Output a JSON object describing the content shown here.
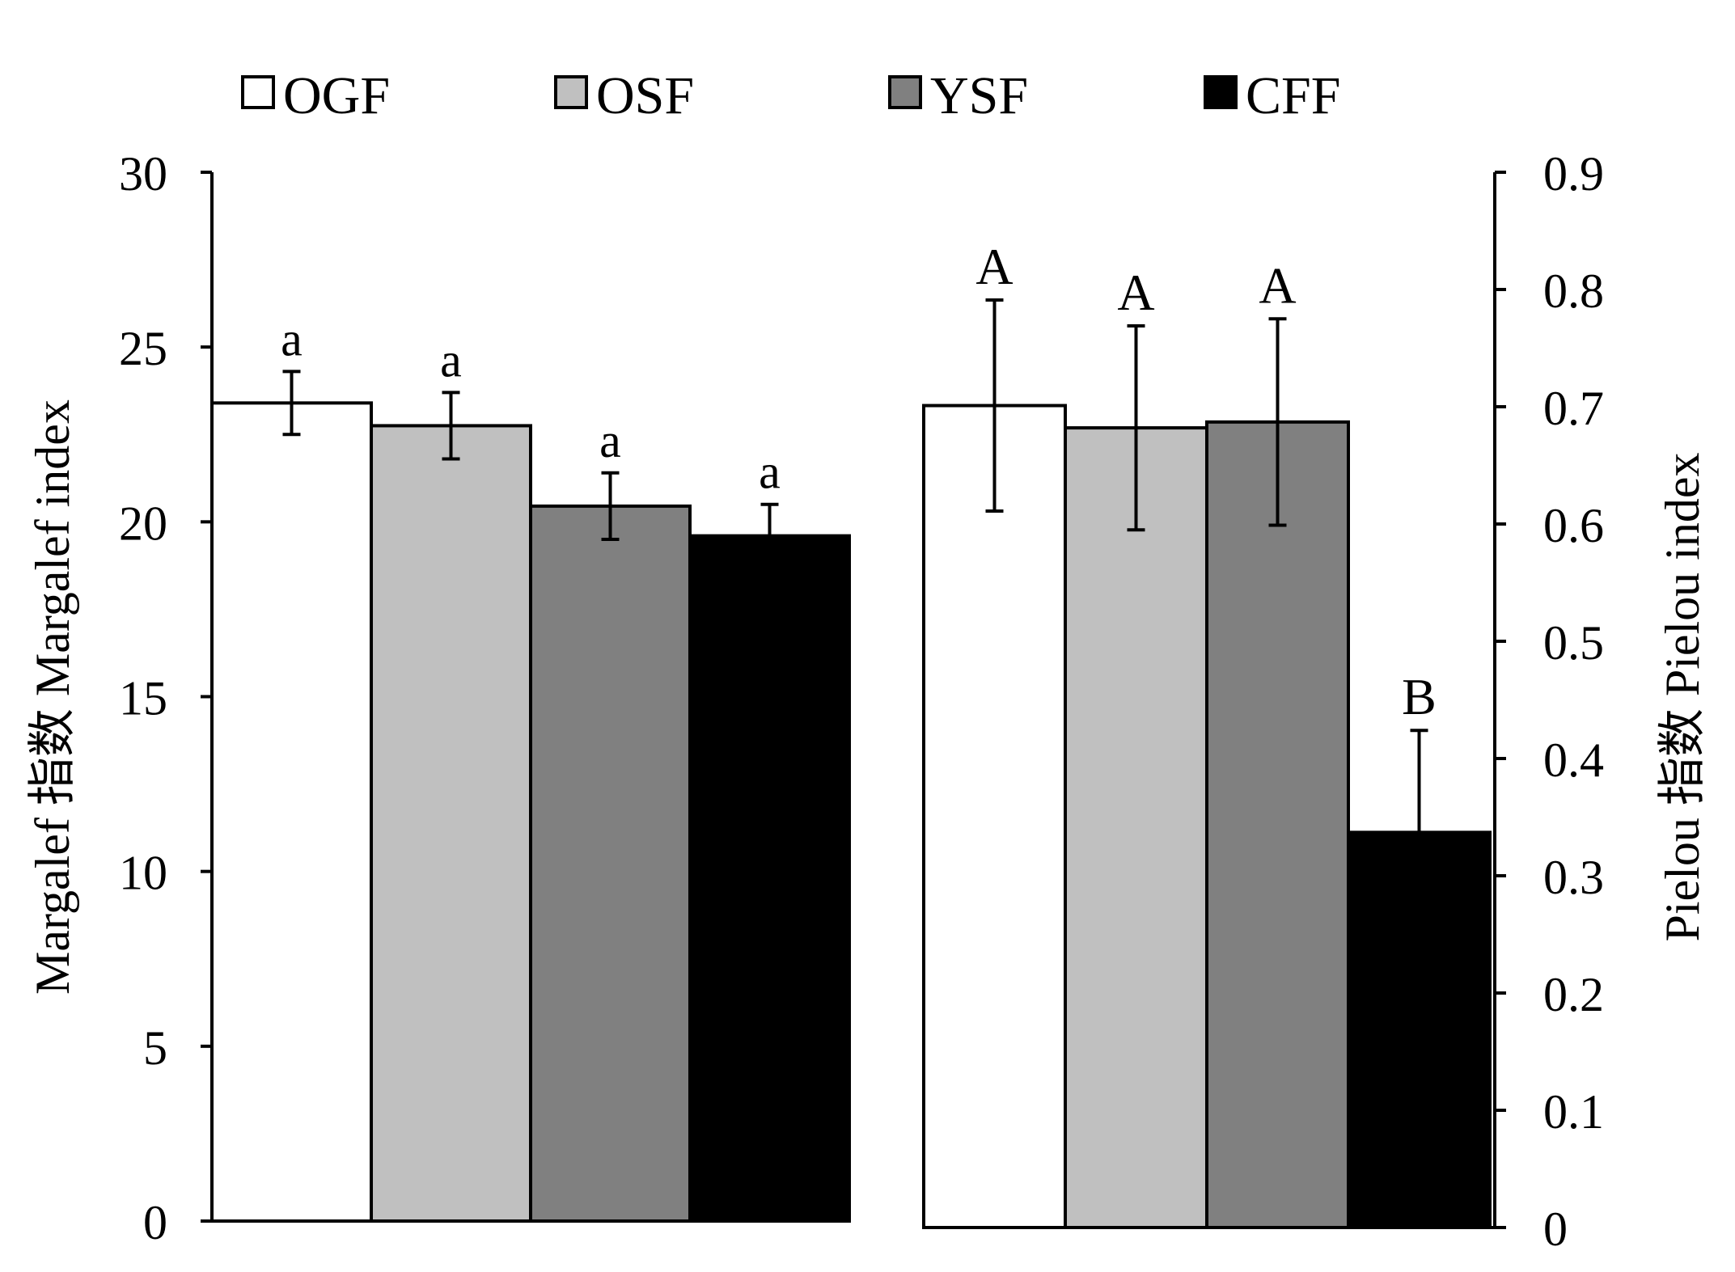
{
  "chart_data": [
    {
      "type": "bar",
      "panel": "left",
      "categories": [
        "OGF",
        "OSF",
        "YSF",
        "CFF"
      ],
      "values": [
        23.4,
        22.75,
        20.45,
        19.6
      ],
      "errors": [
        0.9,
        0.95,
        0.95,
        0.9
      ],
      "significance": [
        "a",
        "a",
        "a",
        "a"
      ],
      "ylabel": "Margalef 指数 Margalef index",
      "ylim": [
        0,
        30
      ],
      "yticks": [
        "0",
        "5",
        "10",
        "15",
        "20",
        "25",
        "30"
      ],
      "axis_side": "left"
    },
    {
      "type": "bar",
      "panel": "right",
      "categories": [
        "OGF",
        "OSF",
        "YSF",
        "CFF"
      ],
      "values": [
        0.701,
        0.682,
        0.687,
        0.337
      ],
      "errors": [
        0.09,
        0.087,
        0.088,
        0.087
      ],
      "significance": [
        "A",
        "A",
        "A",
        "B"
      ],
      "ylabel": "Pielou 指数  Pielou index",
      "ylim": [
        0,
        0.9
      ],
      "yticks": [
        "0",
        "0.1",
        "0.2",
        "0.3",
        "0.4",
        "0.5",
        "0.6",
        "0.7",
        "0.8",
        "0.9"
      ],
      "axis_side": "right"
    }
  ],
  "legend": {
    "items": [
      {
        "label": "OGF",
        "color": "#ffffff"
      },
      {
        "label": "OSF",
        "color": "#c0c0c0"
      },
      {
        "label": "YSF",
        "color": "#808080"
      },
      {
        "label": "CFF",
        "color": "#000000"
      }
    ]
  }
}
